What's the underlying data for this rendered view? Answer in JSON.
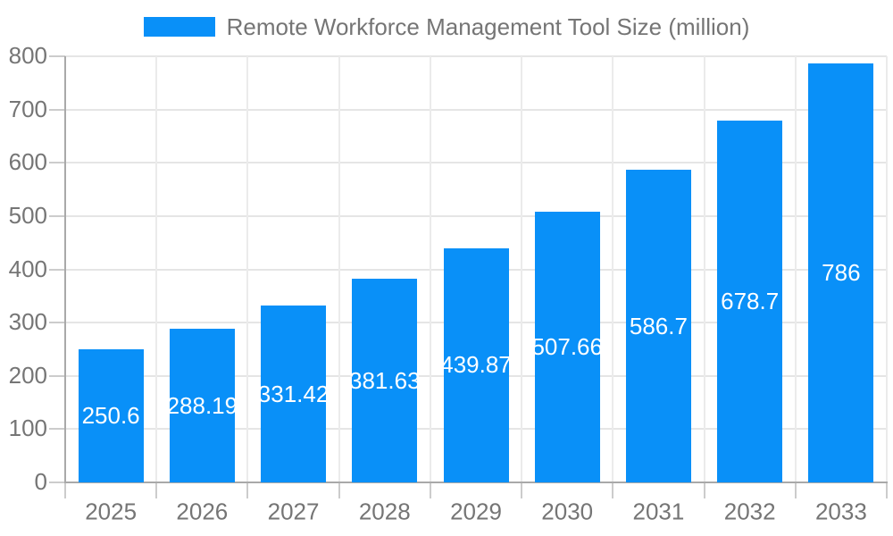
{
  "legend": {
    "label": "Remote Workforce Management Tool Size (million)"
  },
  "chart_data": {
    "type": "bar",
    "title": "Remote Workforce Management Tool Size (million)",
    "categories": [
      "2025",
      "2026",
      "2027",
      "2028",
      "2029",
      "2030",
      "2031",
      "2032",
      "2033"
    ],
    "values": [
      250.6,
      288.19,
      331.42,
      381.63,
      439.87,
      507.66,
      586.7,
      678.7,
      786
    ],
    "value_labels": [
      "250.6",
      "288.19",
      "331.42",
      "381.63",
      "439.87",
      "507.66",
      "586.7",
      "678.7",
      "786"
    ],
    "xlabel": "",
    "ylabel": "",
    "ylim": [
      0,
      800
    ],
    "ytick_step": 100,
    "ytick_labels": [
      "0",
      "100",
      "200",
      "300",
      "400",
      "500",
      "600",
      "700",
      "800"
    ],
    "grid": true,
    "legend_position": "top-center",
    "colors": {
      "bar": "#0990f8",
      "value_label": "#ffffff",
      "axis_text": "#757575",
      "grid_h": "#e5e5e5",
      "grid_v": "#ebebeb",
      "axis_line": "#a9a9a9",
      "tick": "#cccccc",
      "background": "#ffffff"
    }
  }
}
